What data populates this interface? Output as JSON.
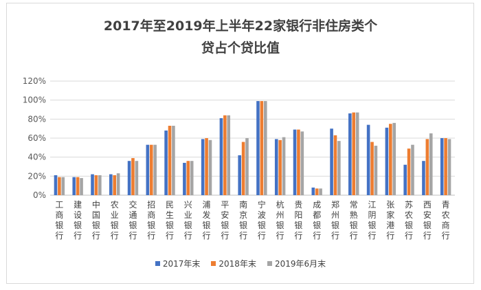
{
  "chart_data": {
    "type": "bar",
    "title_lines": [
      "2017年至2019年上半年22家银行非住房类个",
      "贷占个贷比值"
    ],
    "categories": [
      "工商银行",
      "建设银行",
      "中国银行",
      "农业银行",
      "交通银行",
      "招商银行",
      "民生银行",
      "兴业银行",
      "浦发银行",
      "平安银行",
      "南京银行",
      "宁波银行",
      "杭州银行",
      "贵阳银行",
      "成都银行",
      "郑州银行",
      "常熟银行",
      "江阴银行",
      "张家港行",
      "苏农银行",
      "西安银行",
      "青农商行"
    ],
    "series": [
      {
        "name": "2017年末",
        "color": "#4472c4",
        "values": [
          21,
          19,
          22,
          22,
          36,
          53,
          68,
          34,
          59,
          81,
          42,
          99,
          59,
          69,
          8,
          70,
          86,
          74,
          71,
          32,
          36,
          60
        ]
      },
      {
        "name": "2018年末",
        "color": "#ed7d31",
        "values": [
          19,
          19,
          21,
          21,
          39,
          53,
          73,
          36,
          60,
          84,
          56,
          99,
          58,
          69,
          7,
          63,
          87,
          56,
          75,
          49,
          59,
          60
        ]
      },
      {
        "name": "2019年6月末",
        "color": "#a5a5a5",
        "values": [
          19,
          18,
          21,
          23,
          36,
          53,
          73,
          36,
          58,
          84,
          60,
          99,
          61,
          67,
          7,
          57,
          87,
          52,
          76,
          53,
          65,
          59
        ]
      }
    ],
    "y_ticks": [
      "0%",
      "20%",
      "40%",
      "60%",
      "80%",
      "100%",
      "120%"
    ],
    "ylim": [
      0,
      120
    ],
    "grid": true,
    "legend_position": "bottom"
  }
}
